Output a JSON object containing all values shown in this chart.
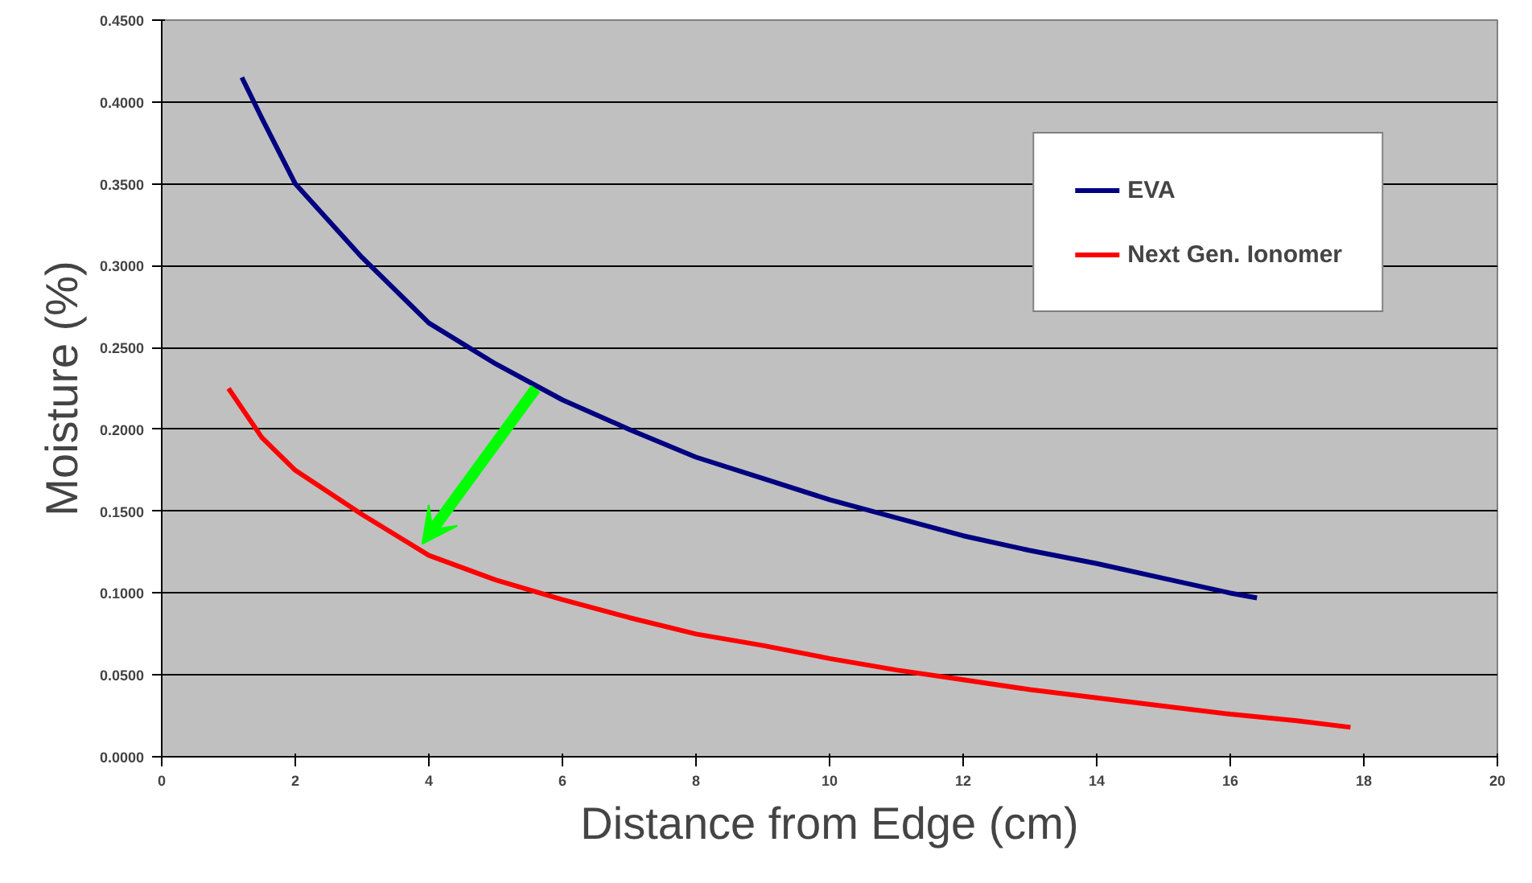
{
  "chart_data": {
    "type": "line",
    "xlabel": "Distance from Edge (cm)",
    "ylabel": "Moisture (%)",
    "xlim": [
      0,
      20
    ],
    "ylim": [
      0,
      0.45
    ],
    "xticks": [
      0,
      2,
      4,
      6,
      8,
      10,
      12,
      14,
      16,
      18,
      20
    ],
    "yticks": [
      {
        "value": 0,
        "label": "0.0000"
      },
      {
        "value": 0.05,
        "label": "0.0500"
      },
      {
        "value": 0.1,
        "label": "0.1000"
      },
      {
        "value": 0.15,
        "label": "0.1500"
      },
      {
        "value": 0.2,
        "label": "0.2000"
      },
      {
        "value": 0.25,
        "label": "0.2500"
      },
      {
        "value": 0.3,
        "label": "0.3000"
      },
      {
        "value": 0.35,
        "label": "0.3500"
      },
      {
        "value": 0.4,
        "label": "0.4000"
      },
      {
        "value": 0.45,
        "label": "0.4500"
      }
    ],
    "grid": "y",
    "legend": "top right",
    "marker": "none",
    "line_style": "solid",
    "series": [
      {
        "name": "EVA",
        "color": "#000080",
        "x": [
          1.2,
          1.5,
          2,
          3,
          4,
          5,
          6,
          7,
          8,
          9,
          10,
          11,
          12,
          13,
          14,
          15,
          16,
          16.4
        ],
        "values": [
          0.415,
          0.39,
          0.35,
          0.305,
          0.265,
          0.24,
          0.218,
          0.2,
          0.183,
          0.17,
          0.157,
          0.146,
          0.135,
          0.126,
          0.118,
          0.109,
          0.1,
          0.097
        ]
      },
      {
        "name": "Next Gen. Ionomer",
        "color": "#ff0000",
        "x": [
          1,
          1.5,
          2,
          3,
          4,
          5,
          6,
          7,
          8,
          9,
          10,
          11,
          12,
          13,
          14,
          15,
          16,
          17,
          17.8
        ],
        "values": [
          0.225,
          0.195,
          0.175,
          0.148,
          0.123,
          0.108,
          0.096,
          0.085,
          0.075,
          0.068,
          0.06,
          0.053,
          0.047,
          0.041,
          0.036,
          0.031,
          0.026,
          0.022,
          0.018
        ]
      }
    ]
  }
}
